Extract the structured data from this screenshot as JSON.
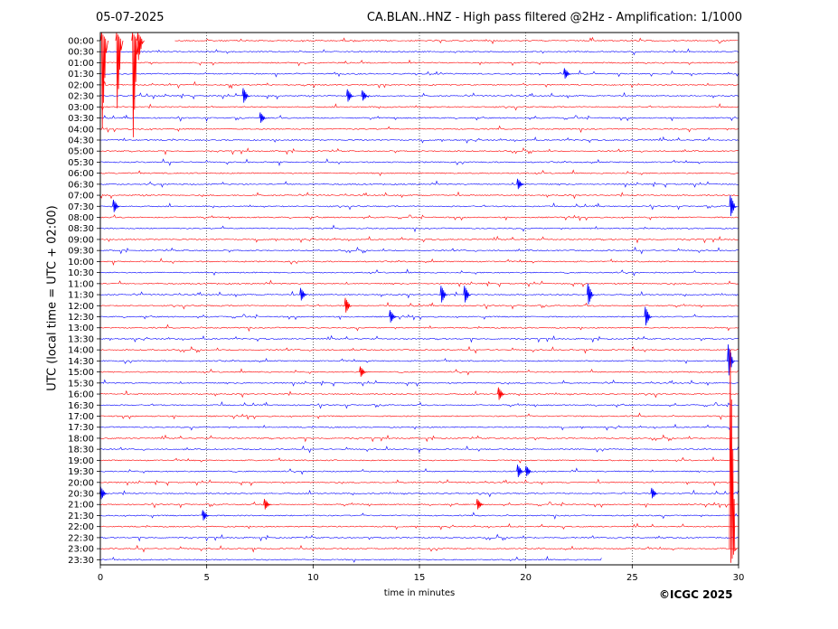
{
  "header": {
    "date": "05-07-2025",
    "title": "CA.BLAN..HNZ - High pass filtered @2Hz - Amplification: 1/1000"
  },
  "credit": "©ICGC 2025",
  "colors": {
    "trace_a": "#ff0000",
    "trace_b": "#0000ff",
    "grid": "#000000"
  },
  "chart_data": {
    "type": "line",
    "title": "CA.BLAN..HNZ - High pass filtered @2Hz - Amplification: 1/1000",
    "xlabel": "time in minutes",
    "ylabel": "UTC (local time = UTC + 02:00)",
    "xlim": [
      0,
      30
    ],
    "x_ticks": [
      0,
      5,
      10,
      15,
      20,
      25,
      30
    ],
    "grid": "vertical dotted",
    "trace_colors_alternate": [
      "red",
      "blue"
    ],
    "rows": [
      "00:00",
      "00:30",
      "01:00",
      "01:30",
      "02:00",
      "02:30",
      "03:00",
      "03:30",
      "04:00",
      "04:30",
      "05:00",
      "05:30",
      "06:00",
      "06:30",
      "07:00",
      "07:30",
      "08:00",
      "08:30",
      "09:00",
      "09:30",
      "10:00",
      "10:30",
      "11:00",
      "11:30",
      "12:00",
      "12:30",
      "13:00",
      "13:30",
      "14:00",
      "14:30",
      "15:00",
      "15:30",
      "16:00",
      "16:30",
      "17:00",
      "17:30",
      "18:00",
      "18:30",
      "19:00",
      "19:30",
      "20:00",
      "20:30",
      "21:00",
      "21:30",
      "22:00",
      "22:30",
      "23:00",
      "23:30"
    ],
    "trace_start_minute": {
      "00:00": 3.5
    },
    "trace_end_minute": {
      "23:30": 23.6
    },
    "events": [
      {
        "row": "00:00",
        "minute": 0.15,
        "amplitude": 9.0
      },
      {
        "row": "00:00",
        "minute": 0.85,
        "amplitude": 7.0
      },
      {
        "row": "00:00",
        "minute": 1.6,
        "amplitude": 10.0
      },
      {
        "row": "00:00",
        "minute": 1.85,
        "amplitude": 2.0
      },
      {
        "row": "02:30",
        "minute": 6.8,
        "amplitude": 0.7
      },
      {
        "row": "02:30",
        "minute": 11.7,
        "amplitude": 0.6
      },
      {
        "row": "02:30",
        "minute": 12.4,
        "amplitude": 0.5
      },
      {
        "row": "01:30",
        "minute": 21.9,
        "amplitude": 0.5
      },
      {
        "row": "03:30",
        "minute": 7.6,
        "amplitude": 0.5
      },
      {
        "row": "06:30",
        "minute": 19.7,
        "amplitude": 0.5
      },
      {
        "row": "07:30",
        "minute": 0.7,
        "amplitude": 0.6
      },
      {
        "row": "07:30",
        "minute": 29.7,
        "amplitude": 1.0
      },
      {
        "row": "11:30",
        "minute": 9.5,
        "amplitude": 0.6
      },
      {
        "row": "11:30",
        "minute": 16.1,
        "amplitude": 0.8
      },
      {
        "row": "11:30",
        "minute": 17.2,
        "amplitude": 0.8
      },
      {
        "row": "11:30",
        "minute": 23.0,
        "amplitude": 1.0
      },
      {
        "row": "12:00",
        "minute": 11.6,
        "amplitude": 0.7
      },
      {
        "row": "12:30",
        "minute": 13.7,
        "amplitude": 0.6
      },
      {
        "row": "12:30",
        "minute": 25.7,
        "amplitude": 0.9
      },
      {
        "row": "14:30",
        "minute": 29.6,
        "amplitude": 1.5
      },
      {
        "row": "15:00",
        "minute": 12.3,
        "amplitude": 0.5
      },
      {
        "row": "16:00",
        "minute": 18.8,
        "amplitude": 0.6
      },
      {
        "row": "19:30",
        "minute": 19.7,
        "amplitude": 0.6
      },
      {
        "row": "19:30",
        "minute": 20.1,
        "amplitude": 0.5
      },
      {
        "row": "20:30",
        "minute": 0.1,
        "amplitude": 0.6
      },
      {
        "row": "20:30",
        "minute": 26.0,
        "amplitude": 0.5
      },
      {
        "row": "21:00",
        "minute": 7.8,
        "amplitude": 0.5
      },
      {
        "row": "21:00",
        "minute": 17.8,
        "amplitude": 0.5
      },
      {
        "row": "21:30",
        "minute": 4.9,
        "amplitude": 0.5
      },
      {
        "row": "23:00",
        "minute": 29.7,
        "amplitude": 18.0
      }
    ]
  }
}
